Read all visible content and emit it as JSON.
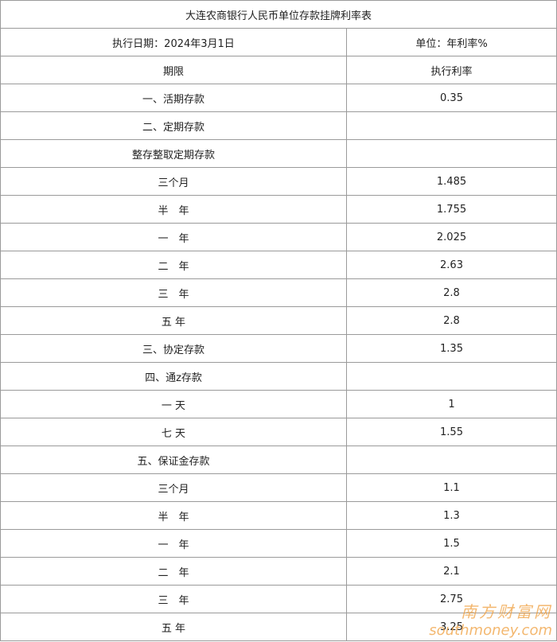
{
  "table": {
    "title": "大连农商银行人民币单位存款挂牌利率表",
    "date": "执行日期：2024年3月1日",
    "unit": "单位：年利率%",
    "headers": [
      "期限",
      "执行利率"
    ],
    "rows": [
      {
        "term": "一、活期存款",
        "rate": "0.35"
      },
      {
        "term": "二、定期存款"
      },
      {
        "term": "整存整取定期存款"
      },
      {
        "term": "三个月",
        "rate": "1.485"
      },
      {
        "term": "半　年",
        "rate": "1.755"
      },
      {
        "term": "一　年",
        "rate": "2.025"
      },
      {
        "term": "二　年",
        "rate": "2.63"
      },
      {
        "term": "三　年",
        "rate": "2.8"
      },
      {
        "term": "五 年",
        "rate": "2.8"
      },
      {
        "term": "三、协定存款",
        "rate": "1.35"
      },
      {
        "term": "四、通z存款"
      },
      {
        "term": "一 天",
        "rate": "1"
      },
      {
        "term": "七 天",
        "rate": "1.55"
      },
      {
        "term": "五、保证金存款"
      },
      {
        "term": "三个月",
        "rate": "1.1"
      },
      {
        "term": "半　年",
        "rate": "1.3"
      },
      {
        "term": "一　年",
        "rate": "1.5"
      },
      {
        "term": "二　年",
        "rate": "2.1"
      },
      {
        "term": "三　年",
        "rate": "2.75"
      },
      {
        "term": "五 年",
        "rate": "3.25"
      }
    ]
  },
  "watermark": {
    "name": "南方财富网",
    "url": "southmoney.com"
  }
}
